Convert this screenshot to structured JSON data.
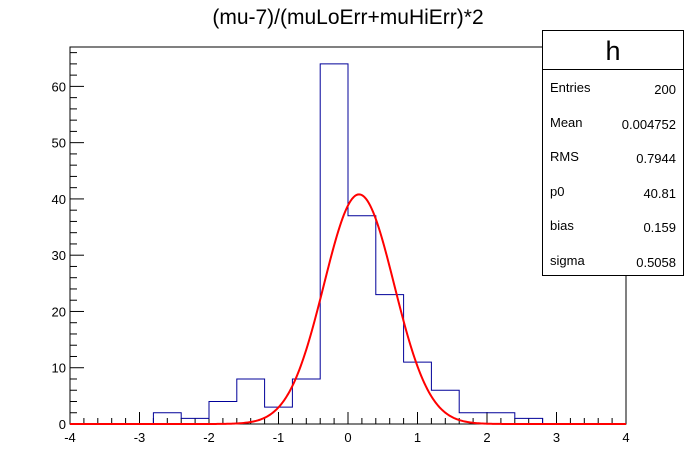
{
  "chart_data": {
    "type": "bar",
    "title": "(mu-7)/(muLoErr+muHiErr)*2",
    "xlim": [
      -4,
      4
    ],
    "ylim": [
      0,
      67
    ],
    "x_ticks": [
      "-4",
      "-3",
      "-2",
      "-1",
      "0",
      "1",
      "2",
      "3",
      "4"
    ],
    "y_ticks": [
      "0",
      "10",
      "20",
      "30",
      "40",
      "50",
      "60"
    ],
    "bin_width": 0.4,
    "bins": [
      {
        "x0": -4.0,
        "value": 0
      },
      {
        "x0": -3.6,
        "value": 0
      },
      {
        "x0": -3.2,
        "value": 0
      },
      {
        "x0": -2.8,
        "value": 2
      },
      {
        "x0": -2.4,
        "value": 1
      },
      {
        "x0": -2.0,
        "value": 4
      },
      {
        "x0": -1.6,
        "value": 8
      },
      {
        "x0": -1.2,
        "value": 3
      },
      {
        "x0": -0.8,
        "value": 8
      },
      {
        "x0": -0.4,
        "value": 64
      },
      {
        "x0": 0.0,
        "value": 37
      },
      {
        "x0": 0.4,
        "value": 23
      },
      {
        "x0": 0.8,
        "value": 11
      },
      {
        "x0": 1.2,
        "value": 6
      },
      {
        "x0": 1.6,
        "value": 2
      },
      {
        "x0": 2.0,
        "value": 2
      },
      {
        "x0": 2.4,
        "value": 1
      },
      {
        "x0": 2.8,
        "value": 0
      },
      {
        "x0": 3.2,
        "value": 0
      },
      {
        "x0": 3.6,
        "value": 0
      }
    ],
    "fit": {
      "function": "gaus",
      "p0": 40.81,
      "bias": 0.159,
      "sigma": 0.5058,
      "color": "#ff0000"
    },
    "hist_color": "#000099"
  },
  "stats": {
    "name": "h",
    "rows": [
      {
        "key": "Entries",
        "value": "200"
      },
      {
        "key": "Mean",
        "value": "0.004752"
      },
      {
        "key": "RMS",
        "value": "0.7944"
      },
      {
        "key": "p0",
        "value": "40.81"
      },
      {
        "key": "bias",
        "value": "0.159"
      },
      {
        "key": "sigma",
        "value": "0.5058"
      }
    ]
  }
}
